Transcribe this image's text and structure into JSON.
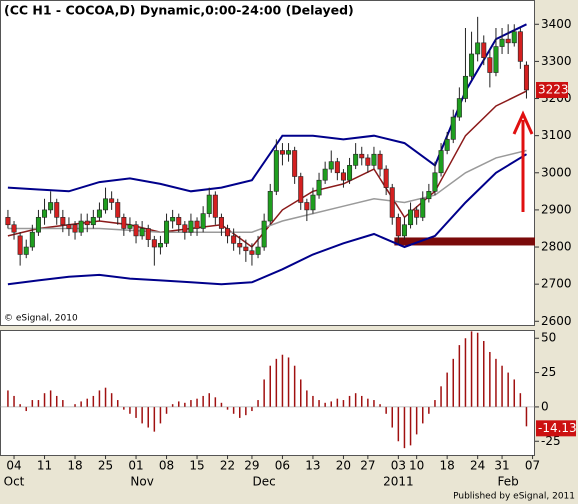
{
  "chart_data": [
    {
      "type": "candlestick",
      "title": "(CC H1 - COCOA,D) Dynamic,0:00-24:00 (Delayed)",
      "note": "© eSignal, 2010",
      "source": "Published by eSignal, 2011",
      "up_color": "#1f9e1f",
      "down_color": "#d42020",
      "xlim": [
        -1.3,
        86.4
      ],
      "ylim": [
        2590,
        3460
      ],
      "yticks": [
        2600,
        2700,
        2800,
        2900,
        3000,
        3100,
        3200,
        3300,
        3400
      ],
      "xticks": [
        {
          "value": 1,
          "label": "04"
        },
        {
          "value": 6,
          "label": "11"
        },
        {
          "value": 11,
          "label": "18"
        },
        {
          "value": 16,
          "label": "25"
        },
        {
          "value": 21,
          "label": "01"
        },
        {
          "value": 26,
          "label": "08"
        },
        {
          "value": 31,
          "label": "15"
        },
        {
          "value": 36,
          "label": "22"
        },
        {
          "value": 40,
          "label": "29"
        },
        {
          "value": 45,
          "label": "06"
        },
        {
          "value": 50,
          "label": "13"
        },
        {
          "value": 55,
          "label": "20"
        },
        {
          "value": 59,
          "label": "27"
        },
        {
          "value": 64,
          "label": "03"
        },
        {
          "value": 67,
          "label": "10"
        },
        {
          "value": 72,
          "label": "18"
        },
        {
          "value": 77,
          "label": "24"
        },
        {
          "value": 81,
          "label": "31"
        },
        {
          "value": 86,
          "label": "07"
        }
      ],
      "month_ticks": [
        {
          "value": 1,
          "label": "Oct"
        },
        {
          "value": 22,
          "label": "Nov"
        },
        {
          "value": 42,
          "label": "Dec"
        },
        {
          "value": 64,
          "label": "2011"
        },
        {
          "value": 82,
          "label": "Feb"
        }
      ],
      "support_level": 2815,
      "candles": [
        [
          2880,
          2900,
          2850,
          2860
        ],
        [
          2860,
          2870,
          2820,
          2840
        ],
        [
          2830,
          2840,
          2750,
          2780
        ],
        [
          2780,
          2820,
          2770,
          2800
        ],
        [
          2800,
          2860,
          2790,
          2840
        ],
        [
          2840,
          2900,
          2830,
          2880
        ],
        [
          2880,
          2930,
          2860,
          2900
        ],
        [
          2900,
          2950,
          2890,
          2920
        ],
        [
          2920,
          2930,
          2860,
          2880
        ],
        [
          2880,
          2900,
          2840,
          2860
        ],
        [
          2860,
          2880,
          2830,
          2850
        ],
        [
          2860,
          2870,
          2820,
          2840
        ],
        [
          2840,
          2890,
          2830,
          2870
        ],
        [
          2870,
          2890,
          2840,
          2860
        ],
        [
          2860,
          2900,
          2850,
          2880
        ],
        [
          2880,
          2920,
          2870,
          2900
        ],
        [
          2900,
          2960,
          2890,
          2930
        ],
        [
          2930,
          2950,
          2900,
          2920
        ],
        [
          2920,
          2930,
          2860,
          2880
        ],
        [
          2880,
          2890,
          2830,
          2850
        ],
        [
          2850,
          2880,
          2840,
          2860
        ],
        [
          2860,
          2870,
          2810,
          2830
        ],
        [
          2830,
          2870,
          2820,
          2850
        ],
        [
          2850,
          2860,
          2800,
          2820
        ],
        [
          2820,
          2830,
          2750,
          2800
        ],
        [
          2800,
          2830,
          2780,
          2810
        ],
        [
          2810,
          2890,
          2800,
          2870
        ],
        [
          2870,
          2900,
          2850,
          2880
        ],
        [
          2880,
          2890,
          2840,
          2860
        ],
        [
          2860,
          2870,
          2820,
          2840
        ],
        [
          2840,
          2890,
          2830,
          2870
        ],
        [
          2870,
          2880,
          2830,
          2850
        ],
        [
          2850,
          2910,
          2840,
          2890
        ],
        [
          2890,
          2960,
          2880,
          2940
        ],
        [
          2940,
          2950,
          2860,
          2880
        ],
        [
          2880,
          2890,
          2830,
          2850
        ],
        [
          2850,
          2860,
          2810,
          2830
        ],
        [
          2830,
          2850,
          2790,
          2810
        ],
        [
          2810,
          2830,
          2780,
          2800
        ],
        [
          2800,
          2820,
          2760,
          2790
        ],
        [
          2790,
          2810,
          2750,
          2780
        ],
        [
          2780,
          2830,
          2770,
          2800
        ],
        [
          2800,
          2890,
          2790,
          2870
        ],
        [
          2870,
          2970,
          2860,
          2950
        ],
        [
          2950,
          3090,
          2940,
          3060
        ],
        [
          3060,
          3080,
          3020,
          3050
        ],
        [
          3050,
          3080,
          3030,
          3060
        ],
        [
          3060,
          3070,
          2970,
          2990
        ],
        [
          2990,
          3000,
          2900,
          2920
        ],
        [
          2920,
          2930,
          2870,
          2900
        ],
        [
          2900,
          2960,
          2890,
          2940
        ],
        [
          2940,
          3000,
          2930,
          2980
        ],
        [
          2980,
          3030,
          2970,
          3010
        ],
        [
          3010,
          3060,
          3000,
          3030
        ],
        [
          3030,
          3040,
          2980,
          3000
        ],
        [
          3000,
          3010,
          2960,
          2980
        ],
        [
          2980,
          3040,
          2970,
          3020
        ],
        [
          3020,
          3080,
          3010,
          3050
        ],
        [
          3050,
          3070,
          3020,
          3040
        ],
        [
          3040,
          3050,
          3000,
          3020
        ],
        [
          3020,
          3070,
          3010,
          3050
        ],
        [
          3050,
          3060,
          2990,
          3010
        ],
        [
          3010,
          3020,
          2940,
          2960
        ],
        [
          2960,
          2970,
          2860,
          2880
        ],
        [
          2880,
          2890,
          2810,
          2830
        ],
        [
          2830,
          2880,
          2820,
          2860
        ],
        [
          2860,
          2920,
          2850,
          2900
        ],
        [
          2900,
          2910,
          2860,
          2880
        ],
        [
          2880,
          2950,
          2870,
          2930
        ],
        [
          2930,
          2970,
          2920,
          2950
        ],
        [
          2950,
          3030,
          2940,
          3000
        ],
        [
          3000,
          3080,
          2990,
          3060
        ],
        [
          3060,
          3110,
          3050,
          3090
        ],
        [
          3090,
          3170,
          3080,
          3150
        ],
        [
          3150,
          3230,
          3140,
          3200
        ],
        [
          3200,
          3390,
          3190,
          3260
        ],
        [
          3260,
          3380,
          3250,
          3320
        ],
        [
          3320,
          3420,
          3300,
          3350
        ],
        [
          3350,
          3370,
          3290,
          3310
        ],
        [
          3310,
          3330,
          3230,
          3270
        ],
        [
          3270,
          3390,
          3260,
          3340
        ],
        [
          3340,
          3390,
          3320,
          3360
        ],
        [
          3360,
          3400,
          3320,
          3350
        ],
        [
          3350,
          3400,
          3340,
          3380
        ],
        [
          3380,
          3390,
          3280,
          3300
        ],
        [
          3290,
          3300,
          3200,
          3223
        ]
      ],
      "lines": [
        {
          "color": "#00008b",
          "x": [
            0,
            5,
            10,
            15,
            20,
            25,
            30,
            35,
            40,
            45,
            50,
            55,
            60,
            65,
            70,
            75,
            80,
            85
          ],
          "values": [
            2960,
            2955,
            2950,
            2975,
            2985,
            2970,
            2950,
            2960,
            2980,
            3100,
            3100,
            3090,
            3100,
            3080,
            3020,
            3220,
            3360,
            3400
          ]
        },
        {
          "color": "#00008b",
          "x": [
            0,
            5,
            10,
            15,
            20,
            25,
            30,
            35,
            40,
            45,
            50,
            55,
            60,
            65,
            70,
            75,
            80,
            85
          ],
          "values": [
            2700,
            2710,
            2720,
            2725,
            2715,
            2710,
            2705,
            2700,
            2705,
            2740,
            2780,
            2810,
            2835,
            2800,
            2830,
            2920,
            3000,
            3050
          ]
        },
        {
          "color": "#8b1a1a",
          "x": [
            0,
            5,
            10,
            15,
            20,
            25,
            30,
            35,
            40,
            45,
            50,
            55,
            60,
            65,
            70,
            75,
            80,
            85
          ],
          "values": [
            2830,
            2850,
            2860,
            2870,
            2860,
            2840,
            2850,
            2860,
            2800,
            2900,
            2950,
            2970,
            3010,
            2880,
            2950,
            3100,
            3180,
            3220
          ]
        },
        {
          "color": "#9a9a9a",
          "x": [
            0,
            5,
            10,
            15,
            20,
            25,
            30,
            35,
            40,
            45,
            50,
            55,
            60,
            65,
            70,
            75,
            80,
            85
          ],
          "values": [
            2850,
            2850,
            2850,
            2850,
            2845,
            2840,
            2840,
            2840,
            2840,
            2870,
            2890,
            2910,
            2930,
            2920,
            2940,
            3000,
            3040,
            3060
          ]
        }
      ]
    },
    {
      "type": "bar",
      "color": "#a01010",
      "ylim": [
        -35,
        56
      ],
      "yticks": [
        -25,
        0,
        25,
        50
      ],
      "values": [
        12,
        8,
        2,
        -3,
        5,
        5,
        10,
        12,
        8,
        5,
        0,
        2,
        4,
        6,
        8,
        12,
        14,
        10,
        5,
        -2,
        -5,
        -8,
        -12,
        -15,
        -18,
        -12,
        -5,
        2,
        4,
        3,
        5,
        6,
        8,
        10,
        7,
        3,
        -2,
        -5,
        -8,
        -6,
        -3,
        5,
        20,
        30,
        35,
        38,
        36,
        30,
        20,
        12,
        8,
        5,
        3,
        4,
        6,
        5,
        8,
        10,
        8,
        6,
        5,
        2,
        -5,
        -15,
        -25,
        -30,
        -28,
        -20,
        -12,
        -5,
        5,
        15,
        25,
        35,
        45,
        50,
        55,
        54,
        48,
        40,
        35,
        30,
        25,
        20,
        10,
        -14.13
      ]
    }
  ]
}
